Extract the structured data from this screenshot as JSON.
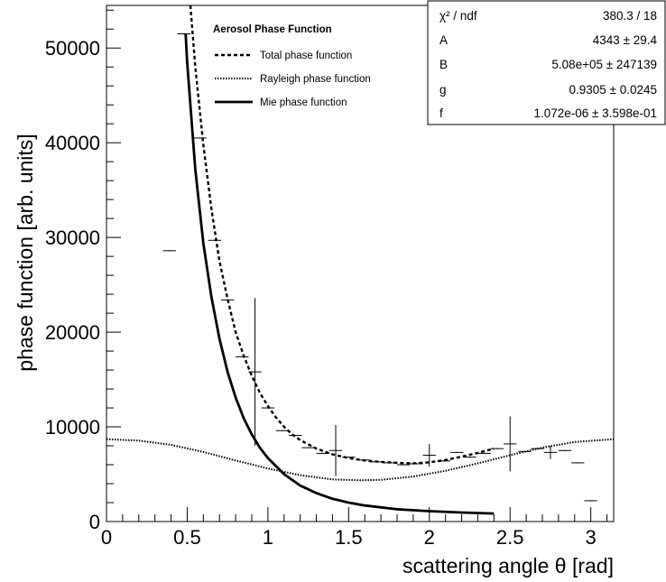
{
  "chart_data": {
    "type": "scatter",
    "xlabel": "scattering angle θ [rad]",
    "ylabel": "phase function [arb. units]",
    "xlim": [
      0,
      3.1416
    ],
    "ylim": [
      0,
      54500
    ],
    "x_ticks": [
      0,
      0.5,
      1,
      1.5,
      2,
      2.5,
      3
    ],
    "x_tick_labels": [
      "0",
      "0.5",
      "1",
      "1.5",
      "2",
      "2.5",
      "3"
    ],
    "y_ticks": [
      0,
      10000,
      20000,
      30000,
      40000,
      50000
    ],
    "y_tick_labels": [
      "0",
      "10000",
      "20000",
      "30000",
      "40000",
      "50000"
    ],
    "legend": {
      "title": "Aerosol Phase Function",
      "position": "top-left",
      "entries": [
        {
          "label": "Total phase function",
          "style": "dashed"
        },
        {
          "label": "Rayleigh phase function",
          "style": "dotted"
        },
        {
          "label": "Mie phase function",
          "style": "solid"
        }
      ]
    },
    "stats_box": {
      "position": "top-right",
      "rows": [
        {
          "name": "χ² / ndf",
          "value": "380.3 / 18"
        },
        {
          "name": "A",
          "value": "4343 ± 29.4"
        },
        {
          "name": "B",
          "value": "5.08e+05 ± 247139"
        },
        {
          "name": "g",
          "value": "0.9305 ± 0.0245"
        },
        {
          "name": "f",
          "value": "1.072e-06 ± 3.598e-01"
        }
      ]
    },
    "data_points": [
      {
        "x": 0.39,
        "y": 28600,
        "xerr": 0.04,
        "yerr": 0
      },
      {
        "x": 0.48,
        "y": 51500,
        "xerr": 0.04,
        "yerr": 0
      },
      {
        "x": 0.58,
        "y": 40500,
        "xerr": 0.04,
        "yerr": 0
      },
      {
        "x": 0.67,
        "y": 29700,
        "xerr": 0.04,
        "yerr": 0
      },
      {
        "x": 0.75,
        "y": 23400,
        "xerr": 0.04,
        "yerr": 0
      },
      {
        "x": 0.84,
        "y": 17400,
        "xerr": 0.04,
        "yerr": 0
      },
      {
        "x": 0.92,
        "y": 15800,
        "xerr": 0.04,
        "yerr": 7800
      },
      {
        "x": 1.0,
        "y": 12000,
        "xerr": 0.04,
        "yerr": 0
      },
      {
        "x": 1.09,
        "y": 9600,
        "xerr": 0.04,
        "yerr": 0
      },
      {
        "x": 1.17,
        "y": 9100,
        "xerr": 0.04,
        "yerr": 0
      },
      {
        "x": 1.25,
        "y": 7800,
        "xerr": 0.04,
        "yerr": 0
      },
      {
        "x": 1.34,
        "y": 7200,
        "xerr": 0.04,
        "yerr": 0
      },
      {
        "x": 1.42,
        "y": 7500,
        "xerr": 0.04,
        "yerr": 2700
      },
      {
        "x": 1.5,
        "y": 6800,
        "xerr": 0.04,
        "yerr": 0
      },
      {
        "x": 1.59,
        "y": 6500,
        "xerr": 0.04,
        "yerr": 0
      },
      {
        "x": 1.67,
        "y": 6300,
        "xerr": 0.04,
        "yerr": 0
      },
      {
        "x": 1.75,
        "y": 6200,
        "xerr": 0.04,
        "yerr": 0
      },
      {
        "x": 1.84,
        "y": 6000,
        "xerr": 0.04,
        "yerr": 0
      },
      {
        "x": 1.92,
        "y": 6100,
        "xerr": 0.04,
        "yerr": 0
      },
      {
        "x": 2.0,
        "y": 7000,
        "xerr": 0.04,
        "yerr": 1200
      },
      {
        "x": 2.09,
        "y": 6400,
        "xerr": 0.04,
        "yerr": 0
      },
      {
        "x": 2.17,
        "y": 7300,
        "xerr": 0.04,
        "yerr": 0
      },
      {
        "x": 2.25,
        "y": 6800,
        "xerr": 0.04,
        "yerr": 0
      },
      {
        "x": 2.34,
        "y": 7200,
        "xerr": 0.04,
        "yerr": 0
      },
      {
        "x": 2.42,
        "y": 7700,
        "xerr": 0.04,
        "yerr": 0
      },
      {
        "x": 2.5,
        "y": 8200,
        "xerr": 0.04,
        "yerr": 2900
      },
      {
        "x": 2.59,
        "y": 7400,
        "xerr": 0.04,
        "yerr": 0
      },
      {
        "x": 2.67,
        "y": 7700,
        "xerr": 0.04,
        "yerr": 0
      },
      {
        "x": 2.75,
        "y": 7300,
        "xerr": 0.04,
        "yerr": 700
      },
      {
        "x": 2.84,
        "y": 7500,
        "xerr": 0.04,
        "yerr": 0
      },
      {
        "x": 2.92,
        "y": 6200,
        "xerr": 0.04,
        "yerr": 0
      },
      {
        "x": 3.0,
        "y": 2200,
        "xerr": 0.04,
        "yerr": 0
      }
    ],
    "curves": [
      {
        "name": "Total phase function",
        "style": "dashed",
        "points": [
          [
            0.52,
            54500
          ],
          [
            0.55,
            48000
          ],
          [
            0.6,
            39800
          ],
          [
            0.65,
            33000
          ],
          [
            0.7,
            27500
          ],
          [
            0.75,
            23500
          ],
          [
            0.8,
            20000
          ],
          [
            0.85,
            17500
          ],
          [
            0.9,
            15400
          ],
          [
            0.95,
            13600
          ],
          [
            1.0,
            12200
          ],
          [
            1.05,
            11000
          ],
          [
            1.1,
            10000
          ],
          [
            1.15,
            9200
          ],
          [
            1.2,
            8600
          ],
          [
            1.3,
            7700
          ],
          [
            1.4,
            7100
          ],
          [
            1.5,
            6700
          ],
          [
            1.6,
            6450
          ],
          [
            1.7,
            6300
          ],
          [
            1.8,
            6200
          ],
          [
            1.9,
            6150
          ],
          [
            2.0,
            6250
          ],
          [
            2.1,
            6500
          ],
          [
            2.2,
            6850
          ],
          [
            2.3,
            7250
          ],
          [
            2.4,
            7700
          ]
        ]
      },
      {
        "name": "Rayleigh phase function",
        "style": "dotted",
        "points": [
          [
            0,
            8700
          ],
          [
            0.2,
            8550
          ],
          [
            0.4,
            8100
          ],
          [
            0.6,
            7350
          ],
          [
            0.8,
            6450
          ],
          [
            1.0,
            5600
          ],
          [
            1.2,
            4900
          ],
          [
            1.4,
            4450
          ],
          [
            1.5712,
            4350
          ],
          [
            1.7,
            4400
          ],
          [
            1.9,
            4750
          ],
          [
            2.1,
            5350
          ],
          [
            2.3,
            6150
          ],
          [
            2.5,
            7000
          ],
          [
            2.7,
            7800
          ],
          [
            2.9,
            8400
          ],
          [
            3.1416,
            8700
          ]
        ]
      },
      {
        "name": "Mie phase function",
        "style": "solid",
        "points": [
          [
            0.49,
            51500
          ],
          [
            0.5,
            48500
          ],
          [
            0.55,
            37200
          ],
          [
            0.6,
            29400
          ],
          [
            0.65,
            23700
          ],
          [
            0.7,
            19300
          ],
          [
            0.75,
            15800
          ],
          [
            0.8,
            13100
          ],
          [
            0.85,
            10900
          ],
          [
            0.9,
            9200
          ],
          [
            0.95,
            7800
          ],
          [
            1.0,
            6700
          ],
          [
            1.1,
            5000
          ],
          [
            1.2,
            3800
          ],
          [
            1.3,
            3000
          ],
          [
            1.4,
            2400
          ],
          [
            1.5,
            2000
          ],
          [
            1.6,
            1700
          ],
          [
            1.8,
            1300
          ],
          [
            2.0,
            1100
          ],
          [
            2.2,
            950
          ],
          [
            2.4,
            850
          ]
        ]
      }
    ]
  }
}
